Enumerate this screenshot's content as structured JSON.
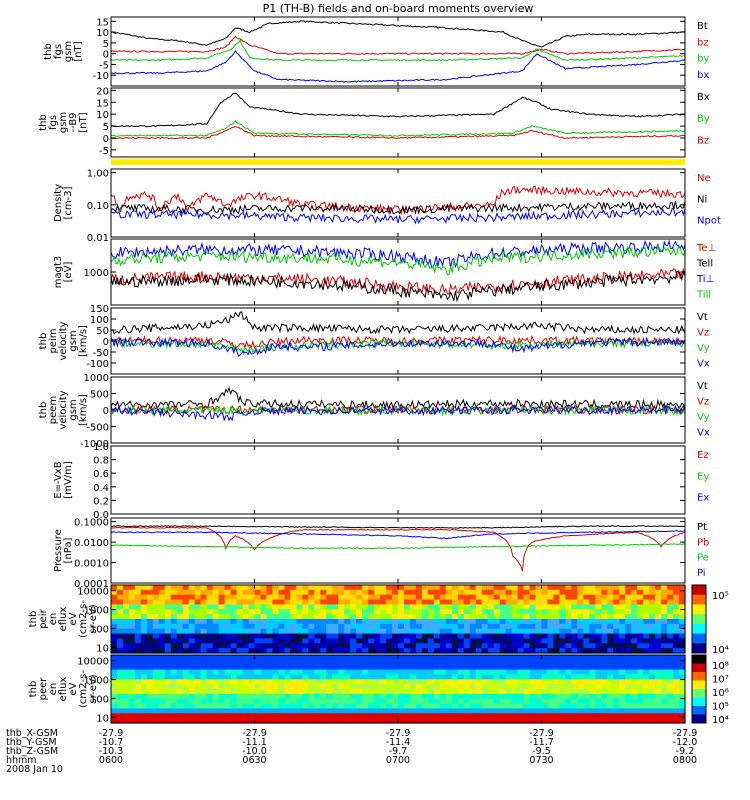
{
  "title": "P1 (TH-B) fields and on-board moments overview",
  "colors": {
    "black": "#000000",
    "red": "#e00000",
    "green": "#00cc00",
    "blue": "#0000ff",
    "yellow": "#ffee00"
  },
  "chart_data": [
    {
      "type": "line",
      "ylabel": [
        "thb",
        "fgs",
        "gsm",
        "[nT]"
      ],
      "ylim": [
        -15,
        17
      ],
      "ytick_labels": [
        "15",
        "10",
        "5",
        "0",
        "-5",
        "-10"
      ],
      "ytick_values": [
        15,
        10,
        5,
        0,
        -5,
        -10
      ],
      "series": [
        {
          "name": "Bt",
          "color": "#000000",
          "x": [
            0,
            3,
            8,
            14,
            20,
            24,
            26,
            29,
            33,
            40,
            50,
            60,
            70,
            82,
            86,
            90,
            95,
            100,
            110,
            120
          ],
          "y": [
            10,
            9,
            7,
            6,
            4,
            7,
            12,
            10,
            14,
            15,
            14,
            13,
            12,
            10,
            6,
            3,
            8,
            9,
            9,
            10
          ]
        },
        {
          "name": "bz",
          "color": "#e00000",
          "x": [
            0,
            10,
            20,
            24,
            26,
            29,
            35,
            50,
            70,
            86,
            90,
            95,
            110,
            120
          ],
          "y": [
            1,
            1,
            1,
            3,
            8,
            4,
            0,
            0,
            0,
            0,
            2,
            0,
            1,
            2
          ]
        },
        {
          "name": "by",
          "color": "#00cc00",
          "x": [
            0,
            10,
            20,
            25,
            27,
            29,
            35,
            50,
            70,
            86,
            89,
            95,
            110,
            120
          ],
          "y": [
            -3,
            -3,
            -2,
            2,
            6,
            -2,
            -3,
            -3,
            -3,
            -2,
            2,
            -3,
            -2,
            -1
          ]
        },
        {
          "name": "bx",
          "color": "#0000ff",
          "x": [
            0,
            10,
            20,
            24,
            26,
            30,
            35,
            50,
            70,
            86,
            89,
            95,
            110,
            120
          ],
          "y": [
            -9,
            -9,
            -8,
            -4,
            1,
            -8,
            -12,
            -13,
            -12,
            -8,
            0,
            -7,
            -5,
            -3
          ]
        }
      ]
    },
    {
      "type": "line",
      "ylabel": [
        "thb",
        "fgs",
        "gsm",
        "--B9",
        "[nT]"
      ],
      "ylim": [
        -8,
        21
      ],
      "ytick_labels": [
        "20",
        "15",
        "10",
        "5",
        "0",
        "-5"
      ],
      "ytick_values": [
        20,
        15,
        10,
        5,
        0,
        -5
      ],
      "series": [
        {
          "name": "Bx",
          "color": "#000000",
          "x": [
            0,
            10,
            20,
            23,
            26,
            29,
            33,
            40,
            60,
            80,
            86,
            89,
            92,
            100,
            110,
            120
          ],
          "y": [
            5,
            5,
            6,
            15,
            19,
            13,
            12,
            10,
            9,
            10,
            17,
            15,
            12,
            10,
            9,
            10
          ]
        },
        {
          "name": "By",
          "color": "#00cc00",
          "x": [
            0,
            20,
            24,
            26,
            30,
            60,
            84,
            88,
            95,
            120
          ],
          "y": [
            1,
            1,
            4,
            7,
            2,
            1,
            2,
            5,
            2,
            3
          ]
        },
        {
          "name": "Bz",
          "color": "#e00000",
          "x": [
            0,
            20,
            24,
            26,
            30,
            60,
            84,
            88,
            95,
            120
          ],
          "y": [
            0,
            0,
            3,
            5,
            1,
            0,
            1,
            3,
            0,
            1
          ]
        }
      ]
    },
    {
      "type": "line",
      "ylabel": [
        "Density",
        "[cm-3]"
      ],
      "yscale": "log",
      "ylim": [
        0.01,
        1.3
      ],
      "ytick_labels": [
        "1.00",
        "0.10",
        "0.01"
      ],
      "ytick_values": [
        1.0,
        0.1,
        0.01
      ],
      "series": [
        {
          "name": "Ne",
          "color": "#e00000",
          "x": [
            0,
            2,
            4,
            8,
            10,
            14,
            16,
            20,
            24,
            30,
            40,
            60,
            80,
            82,
            85,
            100,
            120
          ],
          "y": [
            0.2,
            0.07,
            0.2,
            0.2,
            0.07,
            0.2,
            0.06,
            0.2,
            0.1,
            0.2,
            0.1,
            0.07,
            0.1,
            0.25,
            0.3,
            0.25,
            0.22
          ]
        },
        {
          "name": "Ni",
          "color": "#000000",
          "x": [
            0,
            20,
            40,
            60,
            80,
            100,
            120
          ],
          "y": [
            0.08,
            0.07,
            0.08,
            0.07,
            0.08,
            0.09,
            0.1
          ]
        },
        {
          "name": "Npot",
          "color": "#0000ff",
          "x": [
            0,
            20,
            40,
            60,
            80,
            100,
            120
          ],
          "y": [
            0.05,
            0.05,
            0.04,
            0.035,
            0.04,
            0.05,
            0.06
          ]
        }
      ]
    },
    {
      "type": "line",
      "ylabel": [
        "magt3",
        "[eV]"
      ],
      "yscale": "log",
      "ylim": [
        200,
        5000
      ],
      "ytick_labels": [
        "1000"
      ],
      "ytick_values": [
        1000
      ],
      "series": [
        {
          "name": "Te⊥",
          "color": "#e00000",
          "x": [
            0,
            20,
            40,
            60,
            70,
            80,
            100,
            120
          ],
          "y": [
            700,
            800,
            700,
            500,
            400,
            500,
            700,
            900
          ]
        },
        {
          "name": "Tell",
          "color": "#000000",
          "x": [
            0,
            20,
            40,
            60,
            70,
            80,
            100,
            120
          ],
          "y": [
            600,
            700,
            600,
            400,
            300,
            400,
            600,
            800
          ]
        },
        {
          "name": "Ti⊥",
          "color": "#0000ff",
          "x": [
            0,
            20,
            40,
            60,
            70,
            80,
            100,
            120
          ],
          "y": [
            2500,
            3000,
            2800,
            2200,
            1500,
            2500,
            3200,
            3500
          ]
        },
        {
          "name": "Till",
          "color": "#00cc00",
          "x": [
            0,
            20,
            40,
            60,
            70,
            80,
            100,
            120
          ],
          "y": [
            1800,
            2200,
            2000,
            1600,
            1100,
            1900,
            2500,
            2800
          ]
        }
      ]
    },
    {
      "type": "line",
      "ylabel": [
        "thb",
        "peim",
        "velocity",
        "gsm",
        "[km/s]"
      ],
      "ylim": [
        -150,
        150
      ],
      "ytick_labels": [
        "150",
        "100",
        "50",
        "0",
        "-50",
        "-100"
      ],
      "ytick_values": [
        150,
        100,
        50,
        0,
        -50,
        -100
      ],
      "series": [
        {
          "name": "Vt",
          "color": "#000000",
          "x": [
            0,
            10,
            20,
            25,
            27,
            30,
            40,
            60,
            80,
            90,
            100,
            120
          ],
          "y": [
            50,
            60,
            70,
            100,
            130,
            60,
            60,
            50,
            60,
            70,
            50,
            50
          ]
        },
        {
          "name": "Vz",
          "color": "#e00000",
          "x": [
            0,
            20,
            28,
            40,
            60,
            80,
            100,
            120
          ],
          "y": [
            0,
            5,
            -20,
            5,
            0,
            5,
            0,
            0
          ]
        },
        {
          "name": "Vy",
          "color": "#00cc00",
          "x": [
            0,
            20,
            28,
            40,
            60,
            80,
            100,
            120
          ],
          "y": [
            -10,
            -15,
            -40,
            -20,
            -10,
            -20,
            -10,
            -10
          ]
        },
        {
          "name": "Vx",
          "color": "#0000ff",
          "x": [
            0,
            20,
            28,
            35,
            40,
            60,
            80,
            85,
            100,
            120
          ],
          "y": [
            -5,
            -10,
            -60,
            -20,
            -30,
            -10,
            -10,
            -40,
            -5,
            -5
          ]
        }
      ]
    },
    {
      "type": "line",
      "ylabel": [
        "thb",
        "peem",
        "velocity",
        "gsm",
        "[km/s]"
      ],
      "ylim": [
        -1000,
        1000
      ],
      "ytick_labels": [
        "1000",
        "500",
        "0",
        "-500",
        "-1000"
      ],
      "ytick_values": [
        1000,
        500,
        0,
        -500,
        -1000
      ],
      "series": [
        {
          "name": "Vt",
          "color": "#000000",
          "x": [
            0,
            20,
            25,
            28,
            40,
            60,
            80,
            100,
            120
          ],
          "y": [
            150,
            180,
            600,
            200,
            180,
            150,
            200,
            170,
            160
          ]
        },
        {
          "name": "Vz",
          "color": "#e00000",
          "x": [
            0,
            30,
            60,
            90,
            120
          ],
          "y": [
            0,
            20,
            10,
            20,
            0
          ]
        },
        {
          "name": "Vy",
          "color": "#00cc00",
          "x": [
            0,
            30,
            60,
            90,
            120
          ],
          "y": [
            -20,
            -10,
            -20,
            -10,
            -20
          ]
        },
        {
          "name": "Vx",
          "color": "#0000ff",
          "x": [
            0,
            25,
            30,
            60,
            90,
            120
          ],
          "y": [
            0,
            -200,
            -30,
            -20,
            -10,
            0
          ]
        }
      ]
    },
    {
      "type": "line",
      "ylabel": [
        "E=-VxB",
        "[mV/m]"
      ],
      "ylim": [
        0,
        1
      ],
      "ytick_labels": [
        "1.0",
        "0.8",
        "0.6",
        "0.4",
        "0.2",
        "0.0"
      ],
      "ytick_values": [
        1.0,
        0.8,
        0.6,
        0.4,
        0.2,
        0.0
      ],
      "series": [
        {
          "name": "Ez",
          "color": "#e00000",
          "x": [],
          "y": []
        },
        {
          "name": "Ey",
          "color": "#00cc00",
          "x": [],
          "y": []
        },
        {
          "name": "Ex",
          "color": "#0000ff",
          "x": [],
          "y": []
        }
      ]
    },
    {
      "type": "line",
      "ylabel": [
        "Pressure",
        "[nPa]"
      ],
      "yscale": "log",
      "ylim": [
        0.0001,
        0.15
      ],
      "ytick_labels": [
        "0.1000",
        "0.0100",
        "0.0010",
        "0.0001"
      ],
      "ytick_values": [
        0.1,
        0.01,
        0.001,
        0.0001
      ],
      "series": [
        {
          "name": "Pt",
          "color": "#000000",
          "x": [
            0,
            20,
            40,
            60,
            80,
            100,
            120
          ],
          "y": [
            0.06,
            0.06,
            0.055,
            0.05,
            0.05,
            0.06,
            0.06
          ]
        },
        {
          "name": "Pb",
          "color": "#e00000",
          "x": [
            0,
            20,
            24,
            26,
            30,
            40,
            70,
            80,
            84,
            86,
            88,
            95,
            110,
            115,
            120
          ],
          "y": [
            0.05,
            0.05,
            0.005,
            0.02,
            0.004,
            0.04,
            0.04,
            0.03,
            0.002,
            0.0004,
            0.01,
            0.02,
            0.03,
            0.006,
            0.03
          ]
        },
        {
          "name": "Pe",
          "color": "#00cc00",
          "x": [
            0,
            20,
            40,
            60,
            80,
            100,
            120
          ],
          "y": [
            0.007,
            0.006,
            0.005,
            0.005,
            0.006,
            0.007,
            0.008
          ]
        },
        {
          "name": "Pi",
          "color": "#0000ff",
          "x": [
            0,
            20,
            40,
            60,
            70,
            80,
            100,
            120
          ],
          "y": [
            0.03,
            0.03,
            0.025,
            0.02,
            0.015,
            0.025,
            0.03,
            0.035
          ]
        }
      ]
    },
    {
      "type": "heatmap",
      "ylabel": [
        "thb",
        "peir",
        "en",
        "eflux",
        "eV",
        "(cm2-s-",
        "sr-eV)"
      ],
      "yscale": "log",
      "ylim": [
        5,
        20000
      ],
      "ytick_labels": [
        "10000",
        "1000",
        "100",
        "10"
      ],
      "ytick_values": [
        10000,
        1000,
        100,
        10
      ],
      "colorbar_labels": [
        "10⁵",
        "10⁴"
      ]
    },
    {
      "type": "heatmap",
      "ylabel": [
        "thb",
        "peer",
        "en",
        "eflux",
        "eV",
        "(cm2-s-",
        "sr-eV)"
      ],
      "yscale": "log",
      "ylim": [
        5,
        20000
      ],
      "ytick_labels": [
        "10000",
        "1000",
        "100",
        "10"
      ],
      "ytick_values": [
        10000,
        1000,
        100,
        10
      ],
      "colorbar_labels": [
        "10⁸",
        "10⁷",
        "10⁶",
        "10⁵",
        "10⁴"
      ]
    }
  ],
  "xaxis": {
    "rows": [
      {
        "label": "thb_X-GSM",
        "values": [
          "-27.9",
          "-27.9",
          "-27.9",
          "-27.9",
          "-27.9"
        ]
      },
      {
        "label": "thb_Y-GSM",
        "values": [
          "-10.7",
          "-11.1",
          "-11.4",
          "-11.7",
          "-12.0"
        ]
      },
      {
        "label": "thb_Z-GSM",
        "values": [
          "-10.3",
          "-10.0",
          "-9.7",
          "-9.5",
          "-9.2"
        ]
      },
      {
        "label": "hhmm",
        "values": [
          "0600",
          "0630",
          "0700",
          "0730",
          "0800"
        ]
      }
    ],
    "date": "2008 Jan 10",
    "tick_minutes": [
      0,
      30,
      60,
      90,
      120
    ]
  }
}
